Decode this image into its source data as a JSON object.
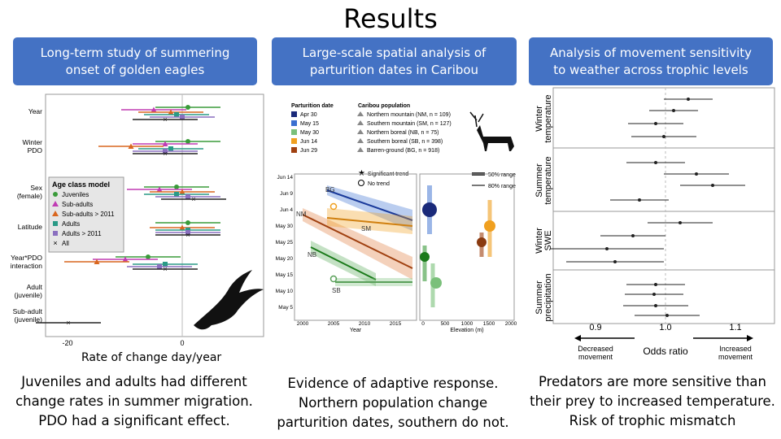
{
  "slide": {
    "title": "Results",
    "headers": [
      "Long-term study of summering\nonset of golden eagles",
      "Large-scale spatial analysis of\nparturition dates in Caribou",
      "Analysis of movement sensitivity\nto weather across trophic levels"
    ],
    "conclusions": [
      "Juveniles and adults had different\nchange rates in summer migration.\nPDO had a significant effect.",
      "Evidence of adaptive response.\nNorthern population change\nparturition dates, southern do not.",
      "Predators are more sensitive than\ntheir prey to increased temperature.\nRisk of trophic mismatch"
    ],
    "caption": "Rate of change day/year"
  },
  "colors": {
    "header_bg": "#4472c4",
    "green": "#3a9b3a",
    "magenta": "#c03cb4",
    "orange": "#d9661f",
    "teal": "#2a9a86",
    "purple": "#8a6fbf",
    "navy": "#1a2a7a",
    "blue": "#3a6fd0"
  },
  "chart_data": [
    {
      "type": "scatter",
      "title": "",
      "xlabel": "Rate of change day/year",
      "x_ticks": [
        "-20",
        "0"
      ],
      "y_categories": [
        "Year",
        "Winter PDO",
        "Sex (female)",
        "Latitude",
        "Year*PDO interaction",
        "Adult (juvenile)",
        "Sub-adult (juvenile)"
      ],
      "legend_title": "Age class model",
      "legend": [
        "Juveniles",
        "Sub-adults",
        "Sub-adults > 2011",
        "Adults",
        "Adults > 2011",
        "All"
      ],
      "series": [
        {
          "name": "Juveniles",
          "color": "#3a9b3a",
          "values": [
            1,
            1,
            -1,
            1,
            -6,
            null,
            null
          ]
        },
        {
          "name": "Sub-adults",
          "color": "#c03cb4",
          "values": [
            -5,
            -3,
            -4,
            null,
            -10,
            null,
            null
          ]
        },
        {
          "name": "Sub-adults > 2011",
          "color": "#d9661f",
          "values": [
            -2,
            -9,
            0,
            0,
            -15,
            null,
            null
          ]
        },
        {
          "name": "Adults",
          "color": "#2a9a86",
          "values": [
            -1,
            -2,
            -1,
            1,
            -3,
            null,
            null
          ]
        },
        {
          "name": "Adults > 2011",
          "color": "#8a6fbf",
          "values": [
            0,
            -3,
            1,
            1,
            -4,
            null,
            null
          ]
        },
        {
          "name": "All",
          "color": "#222222",
          "values": [
            -3,
            -3,
            2,
            1,
            -3,
            null,
            -20
          ]
        }
      ]
    },
    {
      "type": "line",
      "xlabel": "Year",
      "ylabel": "",
      "x_ticks": [
        "2000",
        "2005",
        "2010",
        "2015"
      ],
      "y_ticks": [
        "Jun 14",
        "Jun 9",
        "Jun 4",
        "May 30",
        "May 25",
        "May 20",
        "May 15",
        "May 10",
        "May 5"
      ],
      "x2label": "Elevation (m)",
      "x2_ticks": [
        "0",
        "500",
        "1000",
        "1500",
        "2000"
      ],
      "legend_parturition_title": "Parturition date",
      "legend_parturition": [
        "Apr 30",
        "May 15",
        "May 30",
        "Jun 14",
        "Jun 29"
      ],
      "legend_population_title": "Caribou population",
      "legend_population": [
        "Northern mountain (NM, n = 109)",
        "Southern mountain (SM, n = 127)",
        "Northern boreal (NB, n = 75)",
        "Southern boreal (SB, n = 398)",
        "Barren-ground (BG, n = 918)"
      ],
      "legend_trend": [
        "Significant trend",
        "No trend"
      ],
      "legend_range": [
        "50% range",
        "80% range"
      ],
      "series": [
        {
          "name": "BG",
          "x": [
            2004,
            2015
          ],
          "y": [
            "Jun 10",
            "Jun 1"
          ]
        },
        {
          "name": "NM",
          "x": [
            2000,
            2015
          ],
          "y": [
            "Jun 2",
            "May 20"
          ]
        },
        {
          "name": "SM",
          "x": [
            2004,
            2015
          ],
          "y": [
            "Jun 1",
            "May 30"
          ]
        },
        {
          "name": "NB",
          "x": [
            2004,
            2011
          ],
          "y": [
            "May 27",
            "May 15"
          ]
        },
        {
          "name": "SB",
          "x": [
            2004,
            2015
          ],
          "y": [
            "May 13",
            "May 13"
          ]
        }
      ]
    },
    {
      "type": "scatter",
      "xlabel": "Odds ratio",
      "x_ticks": [
        "0.9",
        "1.0",
        "1.1"
      ],
      "xlim": [
        0.85,
        1.15
      ],
      "left_annotation": "Decreased\nmovement",
      "right_annotation": "Increased\nmovement",
      "facets": [
        "Winter\ntemperature",
        "Summer\ntemperature",
        "Winter\nSWE",
        "Summer\nprecipitation"
      ]
    }
  ]
}
